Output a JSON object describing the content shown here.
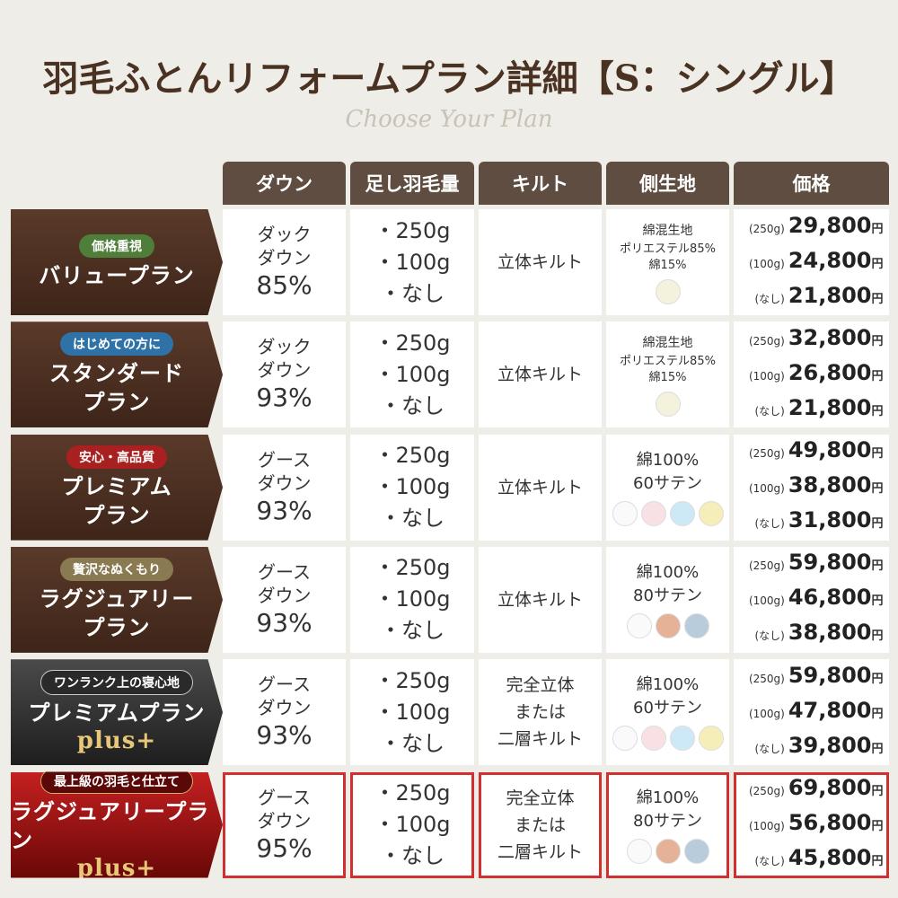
{
  "header": {
    "title": "羽毛ふとんリフォームプラン詳細【S：シングル】",
    "subtitle": "Choose Your Plan"
  },
  "table": {
    "columns": [
      "ダウン",
      "足し羽毛量",
      "キルト",
      "側生地",
      "価格"
    ],
    "rows": [
      {
        "badge": "価格重視",
        "plan": [
          "バリュープラン"
        ],
        "down": [
          "ダック",
          "ダウン",
          "85%"
        ],
        "amounts": [
          "・250g",
          "・100g",
          "・なし"
        ],
        "quilt": [
          "立体キルト"
        ],
        "fabric": [
          "綿混生地",
          "ポリエステル85%",
          "綿15%"
        ],
        "swatches": [
          "#f4f1dc"
        ],
        "prices": [
          {
            "label": "(250g)",
            "price": "29,800",
            "unit": "円"
          },
          {
            "label": "(100g)",
            "price": "24,800",
            "unit": "円"
          },
          {
            "label": "(なし)",
            "price": "21,800",
            "unit": "円"
          }
        ]
      },
      {
        "badge": "はじめての方に",
        "plan": [
          "スタンダード",
          "プラン"
        ],
        "down": [
          "ダック",
          "ダウン",
          "93%"
        ],
        "amounts": [
          "・250g",
          "・100g",
          "・なし"
        ],
        "quilt": [
          "立体キルト"
        ],
        "fabric": [
          "綿混生地",
          "ポリエステル85%",
          "綿15%"
        ],
        "swatches": [
          "#f4f1dc"
        ],
        "prices": [
          {
            "label": "(250g)",
            "price": "32,800",
            "unit": "円"
          },
          {
            "label": "(100g)",
            "price": "26,800",
            "unit": "円"
          },
          {
            "label": "(なし)",
            "price": "21,800",
            "unit": "円"
          }
        ]
      },
      {
        "badge": "安心・高品質",
        "plan": [
          "プレミアム",
          "プラン"
        ],
        "down": [
          "グース",
          "ダウン",
          "93%"
        ],
        "amounts": [
          "・250g",
          "・100g",
          "・なし"
        ],
        "quilt": [
          "立体キルト"
        ],
        "fabric": [
          "綿100%",
          "60サテン"
        ],
        "swatches": [
          "#fafafa",
          "#f9e0e4",
          "#cde8f7",
          "#f6eeb8"
        ],
        "prices": [
          {
            "label": "(250g)",
            "price": "49,800",
            "unit": "円"
          },
          {
            "label": "(100g)",
            "price": "38,800",
            "unit": "円"
          },
          {
            "label": "(なし)",
            "price": "31,800",
            "unit": "円"
          }
        ]
      },
      {
        "badge": "贅沢なぬくもり",
        "plan": [
          "ラグジュアリー",
          "プラン"
        ],
        "down": [
          "グース",
          "ダウン",
          "93%"
        ],
        "amounts": [
          "・250g",
          "・100g",
          "・なし"
        ],
        "quilt": [
          "立体キルト"
        ],
        "fabric": [
          "綿100%",
          "80サテン"
        ],
        "swatches": [
          "#fafafa",
          "#e5b197",
          "#b9ccdc"
        ],
        "prices": [
          {
            "label": "(250g)",
            "price": "59,800",
            "unit": "円"
          },
          {
            "label": "(100g)",
            "price": "46,800",
            "unit": "円"
          },
          {
            "label": "(なし)",
            "price": "38,800",
            "unit": "円"
          }
        ]
      },
      {
        "badge": "ワンランク上の寝心地",
        "plan": [
          "プレミアムプラン"
        ],
        "plus": "plus+",
        "down": [
          "グース",
          "ダウン",
          "93%"
        ],
        "amounts": [
          "・250g",
          "・100g",
          "・なし"
        ],
        "quilt": [
          "完全立体",
          "または",
          "二層キルト"
        ],
        "fabric": [
          "綿100%",
          "60サテン"
        ],
        "swatches": [
          "#fafafa",
          "#f9e0e4",
          "#cde8f7",
          "#f6eeb8"
        ],
        "prices": [
          {
            "label": "(250g)",
            "price": "59,800",
            "unit": "円"
          },
          {
            "label": "(100g)",
            "price": "47,800",
            "unit": "円"
          },
          {
            "label": "(なし)",
            "price": "39,800",
            "unit": "円"
          }
        ]
      },
      {
        "badge": "最上級の羽毛と仕立て",
        "plan": [
          "ラグジュアリープラン"
        ],
        "plus": "plus+",
        "down": [
          "グース",
          "ダウン",
          "95%"
        ],
        "amounts": [
          "・250g",
          "・100g",
          "・なし"
        ],
        "quilt": [
          "完全立体",
          "または",
          "二層キルト"
        ],
        "fabric": [
          "綿100%",
          "80サテン"
        ],
        "swatches": [
          "#fafafa",
          "#e5b197",
          "#b9ccdc"
        ],
        "prices": [
          {
            "label": "(250g)",
            "price": "69,800",
            "unit": "円"
          },
          {
            "label": "(100g)",
            "price": "56,800",
            "unit": "円"
          },
          {
            "label": "(なし)",
            "price": "45,800",
            "unit": "円"
          }
        ]
      }
    ]
  }
}
